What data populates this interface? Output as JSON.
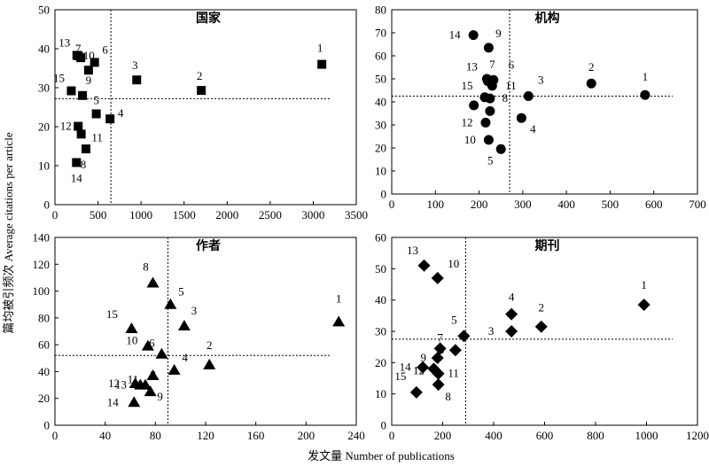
{
  "figure": {
    "xlabel": "发文量 Number of publications",
    "ylabel": "篇均被引频次 Average citations per article"
  },
  "chart_data": [
    {
      "type": "scatter",
      "title": "国家",
      "marker": "square",
      "xlim": [
        0,
        3500
      ],
      "ylim": [
        0,
        50
      ],
      "xticks": [
        0,
        500,
        1000,
        1500,
        2000,
        2500,
        3000,
        3500
      ],
      "yticks": [
        0,
        10,
        20,
        30,
        40,
        50
      ],
      "xtick_labels": [
        "0",
        "500",
        "1000",
        "1500",
        "2000",
        "2500",
        "3000",
        "3500"
      ],
      "ytick_labels": [
        "0",
        "10",
        "20",
        "30",
        "40",
        "50"
      ],
      "ref_x": 650,
      "ref_y": 27.2,
      "points": [
        {
          "label": "1",
          "x": 3100,
          "y": 36
        },
        {
          "label": "2",
          "x": 1700,
          "y": 29.3
        },
        {
          "label": "3",
          "x": 950,
          "y": 32
        },
        {
          "label": "4",
          "x": 640,
          "y": 22
        },
        {
          "label": "5",
          "x": 480,
          "y": 23.3
        },
        {
          "label": "6",
          "x": 460,
          "y": 36.5
        },
        {
          "label": "7",
          "x": 300,
          "y": 37.7
        },
        {
          "label": "8",
          "x": 360,
          "y": 14.3
        },
        {
          "label": "9",
          "x": 390,
          "y": 34.5
        },
        {
          "label": "10",
          "x": 270,
          "y": 38.2
        },
        {
          "label": "11",
          "x": 305,
          "y": 18.1
        },
        {
          "label": "12",
          "x": 270,
          "y": 20.1
        },
        {
          "label": "13",
          "x": 255,
          "y": 38.3
        },
        {
          "label": "14",
          "x": 250,
          "y": 10.8
        },
        {
          "label": "15",
          "x": 190,
          "y": 29.2
        },
        {
          "label": "",
          "x": 320,
          "y": 28
        }
      ]
    },
    {
      "type": "scatter",
      "title": "机构",
      "marker": "circle",
      "xlim": [
        0,
        700
      ],
      "ylim": [
        0,
        80
      ],
      "xticks": [
        0,
        100,
        200,
        300,
        400,
        500,
        600,
        700
      ],
      "yticks": [
        0,
        10,
        20,
        30,
        40,
        50,
        60,
        70,
        80
      ],
      "xtick_labels": [
        "0",
        "100",
        "200",
        "300",
        "400",
        "500",
        "600",
        "700"
      ],
      "ytick_labels": [
        "0",
        "10",
        "20",
        "30",
        "40",
        "50",
        "60",
        "70",
        "80"
      ],
      "ref_x": 270,
      "ref_y": 42.5,
      "points": [
        {
          "label": "1",
          "x": 580,
          "y": 43
        },
        {
          "label": "2",
          "x": 457,
          "y": 48
        },
        {
          "label": "3",
          "x": 313,
          "y": 42.5
        },
        {
          "label": "4",
          "x": 297,
          "y": 33
        },
        {
          "label": "5",
          "x": 250,
          "y": 19.5
        },
        {
          "label": "6",
          "x": 233,
          "y": 49.5
        },
        {
          "label": "7",
          "x": 218,
          "y": 50
        },
        {
          "label": "8",
          "x": 225,
          "y": 41.5
        },
        {
          "label": "9",
          "x": 222,
          "y": 63.5
        },
        {
          "label": "10",
          "x": 222,
          "y": 23.5
        },
        {
          "label": "11",
          "x": 230,
          "y": 47
        },
        {
          "label": "12",
          "x": 215,
          "y": 31
        },
        {
          "label": "13",
          "x": 220,
          "y": 49
        },
        {
          "label": "14",
          "x": 187,
          "y": 69
        },
        {
          "label": "15",
          "x": 213,
          "y": 42
        },
        {
          "label": "",
          "x": 225,
          "y": 36
        },
        {
          "label": "",
          "x": 188,
          "y": 38.5
        }
      ]
    },
    {
      "type": "scatter",
      "title": "作者",
      "marker": "triangle",
      "xlim": [
        0,
        240
      ],
      "ylim": [
        0,
        140
      ],
      "xticks": [
        0,
        40,
        80,
        120,
        160,
        200,
        240
      ],
      "yticks": [
        0,
        20,
        40,
        60,
        80,
        100,
        120,
        140
      ],
      "xtick_labels": [
        "0",
        "40",
        "80",
        "120",
        "160",
        "200",
        "240"
      ],
      "ytick_labels": [
        "0",
        "20",
        "40",
        "60",
        "80",
        "100",
        "120",
        "140"
      ],
      "ref_x": 90,
      "ref_y": 52,
      "points": [
        {
          "label": "1",
          "x": 226,
          "y": 77
        },
        {
          "label": "2",
          "x": 123,
          "y": 45
        },
        {
          "label": "3",
          "x": 103,
          "y": 74
        },
        {
          "label": "4",
          "x": 95,
          "y": 41
        },
        {
          "label": "5",
          "x": 92,
          "y": 90
        },
        {
          "label": "6",
          "x": 85,
          "y": 53
        },
        {
          "label": "7",
          "x": 78,
          "y": 37
        },
        {
          "label": "8",
          "x": 78,
          "y": 106
        },
        {
          "label": "9",
          "x": 76,
          "y": 25
        },
        {
          "label": "10",
          "x": 74,
          "y": 59
        },
        {
          "label": "11",
          "x": 72,
          "y": 30
        },
        {
          "label": "12",
          "x": 64,
          "y": 31
        },
        {
          "label": "13",
          "x": 68,
          "y": 30
        },
        {
          "label": "14",
          "x": 63,
          "y": 17
        },
        {
          "label": "15",
          "x": 61,
          "y": 72
        }
      ]
    },
    {
      "type": "scatter",
      "title": "期刊",
      "marker": "diamond",
      "xlim": [
        0,
        1200
      ],
      "ylim": [
        0,
        60
      ],
      "xticks": [
        0,
        200,
        400,
        600,
        800,
        1000,
        1200
      ],
      "yticks": [
        0,
        10,
        20,
        30,
        40,
        50,
        60
      ],
      "xtick_labels": [
        "0",
        "200",
        "400",
        "600",
        "800",
        "1000",
        "1200"
      ],
      "ytick_labels": [
        "0",
        "10",
        "20",
        "30",
        "40",
        "50",
        "60"
      ],
      "ref_x": 290,
      "ref_y": 27.5,
      "points": [
        {
          "label": "1",
          "x": 990,
          "y": 38.5
        },
        {
          "label": "2",
          "x": 587,
          "y": 31.5
        },
        {
          "label": "3",
          "x": 470,
          "y": 30
        },
        {
          "label": "4",
          "x": 470,
          "y": 35.5
        },
        {
          "label": "5",
          "x": 283,
          "y": 28.5
        },
        {
          "label": "6",
          "x": 250,
          "y": 24
        },
        {
          "label": "7",
          "x": 190,
          "y": 24.5
        },
        {
          "label": "8",
          "x": 183,
          "y": 13
        },
        {
          "label": "9",
          "x": 180,
          "y": 21.5
        },
        {
          "label": "10",
          "x": 180,
          "y": 47
        },
        {
          "label": "11",
          "x": 183,
          "y": 16.5
        },
        {
          "label": "12",
          "x": 165,
          "y": 18
        },
        {
          "label": "13",
          "x": 127,
          "y": 51
        },
        {
          "label": "14",
          "x": 122,
          "y": 18.5
        },
        {
          "label": "15",
          "x": 97,
          "y": 10.5
        }
      ]
    }
  ]
}
